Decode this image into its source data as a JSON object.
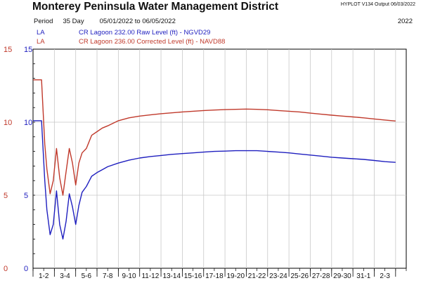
{
  "header": {
    "title": "Monterey Peninsula Water Management District",
    "version": "HYPLOT V134  Output 06/03/2022",
    "period_label": "Period",
    "period_length": "35 Day",
    "date_range": "05/01/2022  to  06/05/2022",
    "year": "2022"
  },
  "legend": [
    {
      "code": "LA",
      "text": "CR Lagoon  232.00 Raw Level (ft) - NGVD29",
      "color": "#1f1fbf"
    },
    {
      "code": "LA",
      "text": "CR Lagoon  236.00 Corrected Level (ft) - NAVD88",
      "color": "#c0392b"
    }
  ],
  "chart_data": {
    "type": "line",
    "title": "Monterey Peninsula Water Management District",
    "xlabel": "",
    "ylabel": "",
    "xlim": [
      0,
      35
    ],
    "ylim": [
      0,
      15
    ],
    "grid": true,
    "y_ticks": [
      {
        "value": 15,
        "label_left": "15",
        "label_right": "15"
      },
      {
        "value": 10,
        "label_left": "10",
        "label_right": "10"
      },
      {
        "value": 5,
        "label_left": "5",
        "label_right": "5"
      },
      {
        "value": 0,
        "label_left": "0",
        "label_right": "0"
      }
    ],
    "x_ticks": [
      "1-2",
      "3-4",
      "5-6",
      "7-8",
      "9-10",
      "11-12",
      "13-14",
      "15-16",
      "17-18",
      "19-20",
      "21-22",
      "23-24",
      "25-26",
      "27-28",
      "29-30",
      "31-1",
      "2-3"
    ],
    "series": [
      {
        "name": "CR Lagoon  232.00 Raw Level (ft) - NGVD29",
        "color": "#1f1fbf",
        "x": [
          0,
          0.8,
          1.1,
          1.3,
          1.6,
          1.9,
          2.2,
          2.5,
          2.8,
          3.1,
          3.4,
          3.7,
          4.0,
          4.3,
          4.6,
          5.0,
          5.5,
          6.0,
          6.5,
          7.0,
          8.0,
          9.0,
          10,
          11,
          12,
          13,
          14,
          15,
          16,
          17,
          18,
          19,
          20,
          21,
          22,
          23,
          24,
          25,
          26,
          27,
          28,
          29,
          30,
          31,
          32,
          33,
          34
        ],
        "y": [
          10.1,
          10.1,
          6.0,
          4.0,
          2.3,
          3.0,
          5.3,
          3.0,
          2.0,
          3.2,
          5.1,
          4.2,
          3.0,
          4.3,
          5.2,
          5.6,
          6.3,
          6.55,
          6.75,
          6.95,
          7.2,
          7.4,
          7.55,
          7.65,
          7.72,
          7.8,
          7.85,
          7.9,
          7.95,
          8.0,
          8.02,
          8.05,
          8.05,
          8.05,
          8.0,
          7.95,
          7.9,
          7.82,
          7.75,
          7.68,
          7.6,
          7.55,
          7.5,
          7.45,
          7.38,
          7.3,
          7.25
        ]
      },
      {
        "name": "CR Lagoon  236.00 Corrected Level (ft) - NAVD88",
        "color": "#c0392b",
        "x": [
          0,
          0.8,
          1.1,
          1.3,
          1.6,
          1.9,
          2.2,
          2.5,
          2.8,
          3.1,
          3.4,
          3.7,
          4.0,
          4.3,
          4.6,
          5.0,
          5.5,
          6.0,
          6.5,
          7.0,
          8.0,
          9.0,
          10,
          11,
          12,
          13,
          14,
          15,
          16,
          17,
          18,
          19,
          20,
          21,
          22,
          23,
          24,
          25,
          26,
          27,
          28,
          29,
          30,
          31,
          32,
          33,
          34
        ],
        "y": [
          12.9,
          12.9,
          8.5,
          6.8,
          5.1,
          6.0,
          8.2,
          6.2,
          5.0,
          6.6,
          8.2,
          7.2,
          5.7,
          7.2,
          7.9,
          8.2,
          9.1,
          9.35,
          9.6,
          9.75,
          10.1,
          10.3,
          10.42,
          10.5,
          10.58,
          10.64,
          10.7,
          10.75,
          10.8,
          10.83,
          10.86,
          10.88,
          10.9,
          10.88,
          10.85,
          10.8,
          10.75,
          10.7,
          10.62,
          10.55,
          10.48,
          10.42,
          10.36,
          10.3,
          10.22,
          10.15,
          10.08
        ]
      }
    ]
  }
}
